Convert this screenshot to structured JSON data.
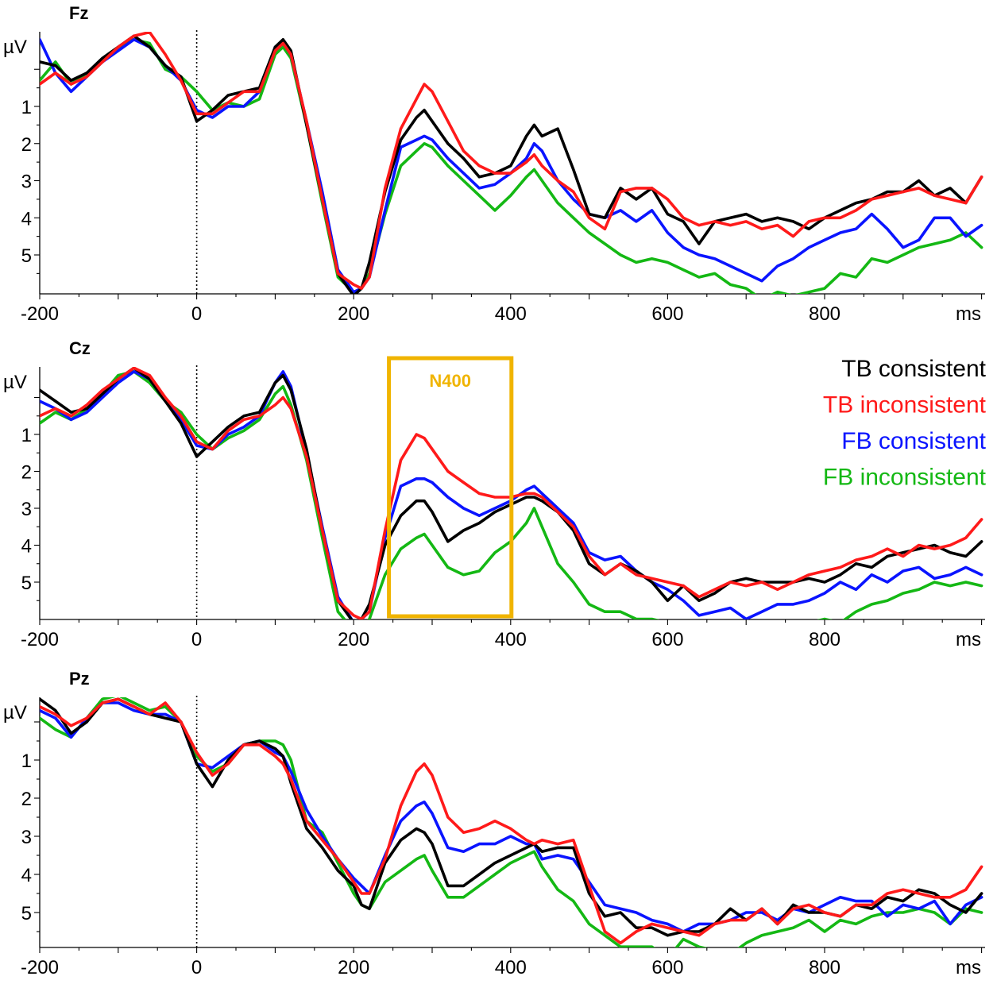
{
  "colors": {
    "tb_consistent": "#000000",
    "tb_inconsistent": "#ff1a1a",
    "fb_consistent": "#0a14ff",
    "fb_inconsistent": "#14b814",
    "n400_box": "#f0b400",
    "axis": "#000000"
  },
  "chart_data": [
    {
      "type": "line",
      "title": "Fz",
      "ylabel": "µV",
      "xunit": "ms",
      "y_inverted": true,
      "xlim": [
        -200,
        1000
      ],
      "ylim": [
        -0.9,
        6.0
      ],
      "x_ticks": [
        "-200",
        "0",
        "200",
        "400",
        "600",
        "800"
      ],
      "y_ticks": [
        "1",
        "2",
        "3",
        "4",
        "5"
      ],
      "onset_marker_ms": 0,
      "grid": false,
      "x": [
        -200,
        -180,
        -160,
        -140,
        -120,
        -100,
        -80,
        -60,
        -40,
        -20,
        0,
        20,
        40,
        60,
        80,
        100,
        110,
        120,
        140,
        160,
        180,
        200,
        210,
        220,
        240,
        260,
        280,
        290,
        300,
        320,
        340,
        360,
        380,
        400,
        420,
        430,
        440,
        460,
        480,
        500,
        520,
        540,
        560,
        580,
        600,
        620,
        640,
        660,
        680,
        700,
        720,
        740,
        760,
        780,
        800,
        820,
        840,
        860,
        880,
        900,
        920,
        940,
        960,
        980,
        1000
      ],
      "series": [
        {
          "name": "TB consistent",
          "values": [
            -0.2,
            -0.1,
            0.3,
            0.1,
            -0.3,
            -0.6,
            -0.9,
            -0.6,
            -0.1,
            0.2,
            1.4,
            1.1,
            0.7,
            0.6,
            0.5,
            -0.6,
            -0.8,
            -0.5,
            1.5,
            3.5,
            5.5,
            6.1,
            5.9,
            5.2,
            3.3,
            1.9,
            1.3,
            1.1,
            1.4,
            2.0,
            2.4,
            2.9,
            2.8,
            2.6,
            1.8,
            1.5,
            1.8,
            1.6,
            2.7,
            3.9,
            4.0,
            3.2,
            3.5,
            3.2,
            3.9,
            4.1,
            4.7,
            4.1,
            4.0,
            3.9,
            4.1,
            4.0,
            4.1,
            4.3,
            4.0,
            3.8,
            3.6,
            3.5,
            3.3,
            3.3,
            3.0,
            3.4,
            3.2,
            3.6,
            2.9
          ]
        },
        {
          "name": "TB inconsistent",
          "values": [
            0.4,
            0.1,
            0.4,
            0.2,
            -0.2,
            -0.6,
            -0.9,
            -1.0,
            -0.4,
            0.3,
            1.2,
            1.2,
            0.9,
            0.6,
            0.6,
            -0.5,
            -0.7,
            -0.4,
            1.4,
            3.5,
            5.5,
            5.8,
            5.9,
            5.6,
            3.2,
            1.6,
            0.8,
            0.4,
            0.6,
            1.4,
            2.2,
            2.6,
            2.8,
            2.8,
            2.5,
            2.3,
            2.6,
            3.0,
            3.3,
            4.0,
            4.3,
            3.3,
            3.2,
            3.2,
            3.5,
            4.0,
            4.2,
            4.1,
            4.2,
            4.1,
            4.3,
            4.2,
            4.5,
            4.1,
            4.0,
            4.0,
            3.8,
            3.5,
            3.4,
            3.3,
            3.2,
            3.4,
            3.5,
            3.6,
            2.9
          ]
        },
        {
          "name": "FB consistent",
          "values": [
            -0.8,
            0.1,
            0.6,
            0.2,
            -0.2,
            -0.5,
            -0.8,
            -0.6,
            -0.1,
            0.3,
            1.1,
            1.3,
            1.0,
            1.0,
            0.6,
            -0.6,
            -0.7,
            -0.4,
            1.4,
            3.3,
            5.4,
            6.0,
            5.9,
            5.6,
            3.8,
            2.1,
            1.9,
            1.8,
            1.9,
            2.4,
            2.8,
            3.2,
            3.1,
            2.8,
            2.4,
            2.0,
            2.2,
            3.0,
            3.5,
            3.9,
            4.0,
            3.8,
            4.1,
            3.8,
            4.4,
            4.8,
            5.0,
            5.1,
            5.3,
            5.5,
            5.7,
            5.3,
            5.1,
            4.8,
            4.6,
            4.4,
            4.3,
            3.9,
            4.3,
            4.8,
            4.6,
            4.0,
            4.0,
            4.5,
            4.2
          ]
        },
        {
          "name": "FB inconsistent",
          "values": [
            0.3,
            -0.2,
            0.4,
            0.1,
            -0.2,
            -0.6,
            -0.8,
            -0.7,
            0.0,
            0.2,
            0.6,
            1.1,
            0.9,
            1.0,
            0.8,
            -0.4,
            -0.6,
            -0.3,
            1.5,
            3.6,
            5.6,
            6.0,
            5.9,
            5.5,
            3.9,
            2.6,
            2.2,
            2.0,
            2.1,
            2.6,
            3.0,
            3.4,
            3.8,
            3.4,
            2.9,
            2.7,
            3.0,
            3.6,
            4.0,
            4.4,
            4.7,
            5.0,
            5.2,
            5.1,
            5.2,
            5.4,
            5.6,
            5.5,
            5.8,
            5.9,
            6.2,
            6.0,
            6.1,
            6.0,
            5.9,
            5.5,
            5.6,
            5.1,
            5.2,
            5.0,
            4.8,
            4.7,
            4.6,
            4.4,
            4.8
          ]
        }
      ]
    },
    {
      "type": "line",
      "title": "Cz",
      "ylabel": "µV",
      "xunit": "ms",
      "y_inverted": true,
      "xlim": [
        -200,
        1000
      ],
      "ylim": [
        -0.9,
        6.0
      ],
      "x_ticks": [
        "-200",
        "0",
        "200",
        "400",
        "600",
        "800"
      ],
      "y_ticks": [
        "1",
        "2",
        "3",
        "4",
        "5"
      ],
      "onset_marker_ms": 0,
      "grid": false,
      "legend": "top-right",
      "annotation": {
        "label": "N400",
        "x_range": [
          250,
          400
        ]
      },
      "x": [
        -200,
        -180,
        -160,
        -140,
        -120,
        -100,
        -80,
        -60,
        -40,
        -20,
        0,
        20,
        40,
        60,
        80,
        100,
        110,
        120,
        140,
        160,
        180,
        200,
        210,
        220,
        240,
        260,
        280,
        290,
        300,
        320,
        340,
        360,
        380,
        400,
        420,
        430,
        440,
        460,
        480,
        500,
        520,
        540,
        560,
        580,
        600,
        620,
        640,
        660,
        680,
        700,
        720,
        740,
        760,
        780,
        800,
        820,
        840,
        860,
        880,
        900,
        920,
        940,
        960,
        980,
        1000
      ],
      "series": [
        {
          "name": "TB consistent",
          "values": [
            -0.2,
            0.1,
            0.4,
            0.3,
            -0.1,
            -0.5,
            -0.8,
            -0.5,
            0.1,
            0.7,
            1.6,
            1.2,
            0.8,
            0.5,
            0.4,
            -0.4,
            -0.6,
            -0.2,
            1.4,
            3.6,
            5.5,
            6.1,
            6.0,
            5.6,
            4.0,
            3.2,
            2.8,
            2.8,
            3.1,
            3.9,
            3.6,
            3.4,
            3.1,
            2.9,
            2.7,
            2.7,
            2.8,
            3.1,
            3.6,
            4.5,
            4.8,
            4.5,
            4.7,
            5.0,
            5.5,
            5.1,
            5.5,
            5.3,
            5.0,
            4.9,
            5.0,
            5.0,
            5.0,
            4.9,
            5.0,
            4.8,
            4.5,
            4.6,
            4.3,
            4.2,
            4.1,
            4.0,
            4.2,
            4.3,
            3.9
          ]
        },
        {
          "name": "TB inconsistent",
          "values": [
            0.5,
            0.3,
            0.5,
            0.2,
            -0.2,
            -0.5,
            -0.8,
            -0.6,
            0.0,
            0.5,
            1.2,
            1.4,
            0.9,
            0.6,
            0.5,
            0.2,
            0.0,
            0.3,
            1.6,
            3.6,
            5.5,
            5.9,
            6.0,
            5.8,
            3.6,
            1.7,
            1.0,
            1.1,
            1.4,
            2.0,
            2.3,
            2.6,
            2.7,
            2.7,
            2.6,
            2.6,
            2.7,
            3.1,
            3.5,
            4.3,
            4.8,
            4.5,
            4.8,
            4.9,
            5.0,
            5.1,
            5.4,
            5.2,
            5.0,
            5.1,
            5.0,
            5.2,
            5.0,
            4.8,
            4.7,
            4.6,
            4.4,
            4.3,
            4.1,
            4.3,
            4.0,
            4.1,
            4.0,
            3.8,
            3.3
          ]
        },
        {
          "name": "FB consistent",
          "values": [
            0.1,
            0.3,
            0.6,
            0.4,
            0.0,
            -0.4,
            -0.7,
            -0.5,
            0.1,
            0.6,
            1.3,
            1.4,
            1.0,
            0.8,
            0.5,
            -0.4,
            -0.7,
            -0.3,
            1.5,
            3.5,
            5.4,
            6.1,
            6.0,
            5.8,
            3.8,
            2.4,
            2.2,
            2.2,
            2.3,
            2.7,
            3.0,
            3.2,
            3.0,
            2.8,
            2.5,
            2.4,
            2.6,
            3.0,
            3.4,
            4.2,
            4.4,
            4.3,
            4.7,
            5.0,
            5.2,
            5.5,
            5.9,
            5.8,
            5.7,
            6.0,
            5.8,
            5.6,
            5.6,
            5.5,
            5.3,
            5.0,
            5.2,
            4.8,
            5.0,
            4.7,
            4.6,
            4.9,
            4.8,
            4.6,
            4.8
          ]
        },
        {
          "name": "FB inconsistent",
          "values": [
            0.7,
            0.4,
            0.6,
            0.3,
            -0.1,
            -0.6,
            -0.7,
            -0.4,
            0.1,
            0.4,
            1.0,
            1.4,
            1.1,
            0.9,
            0.6,
            -0.1,
            -0.3,
            0.2,
            1.7,
            3.8,
            5.8,
            6.3,
            6.2,
            6.0,
            4.8,
            4.1,
            3.8,
            3.7,
            4.0,
            4.6,
            4.8,
            4.7,
            4.2,
            3.9,
            3.4,
            3.0,
            3.5,
            4.5,
            5.0,
            5.6,
            5.8,
            5.8,
            6.0,
            6.0,
            6.1,
            6.2,
            6.3,
            6.4,
            6.5,
            6.6,
            6.4,
            6.3,
            6.1,
            6.1,
            6.0,
            6.1,
            5.8,
            5.6,
            5.5,
            5.3,
            5.2,
            5.0,
            5.1,
            5.0,
            5.1
          ]
        }
      ]
    },
    {
      "type": "line",
      "title": "Pz",
      "ylabel": "µV",
      "xunit": "ms",
      "y_inverted": true,
      "xlim": [
        -200,
        1000
      ],
      "ylim": [
        -0.9,
        6.0
      ],
      "x_ticks": [
        "-200",
        "0",
        "200",
        "400",
        "600",
        "800"
      ],
      "y_ticks": [
        "1",
        "2",
        "3",
        "4",
        "5"
      ],
      "onset_marker_ms": 0,
      "grid": false,
      "x": [
        -200,
        -180,
        -160,
        -140,
        -120,
        -100,
        -80,
        -60,
        -40,
        -20,
        0,
        20,
        40,
        60,
        80,
        100,
        110,
        120,
        140,
        160,
        180,
        200,
        210,
        220,
        240,
        260,
        280,
        290,
        300,
        320,
        340,
        360,
        380,
        400,
        420,
        430,
        440,
        460,
        480,
        500,
        520,
        540,
        560,
        580,
        600,
        620,
        640,
        660,
        680,
        700,
        720,
        740,
        760,
        780,
        800,
        820,
        840,
        860,
        880,
        900,
        920,
        940,
        960,
        980,
        1000
      ],
      "series": [
        {
          "name": "TB consistent",
          "values": [
            -0.6,
            -0.3,
            0.3,
            0.0,
            -0.5,
            -0.6,
            -0.4,
            -0.2,
            -0.1,
            0.0,
            1.1,
            1.7,
            1.0,
            0.6,
            0.5,
            0.7,
            0.9,
            1.6,
            2.8,
            3.3,
            3.9,
            4.3,
            4.8,
            4.9,
            3.7,
            3.1,
            2.8,
            2.9,
            3.2,
            4.3,
            4.3,
            4.0,
            3.7,
            3.5,
            3.3,
            3.2,
            3.4,
            3.3,
            3.3,
            4.5,
            5.1,
            5.0,
            5.4,
            5.4,
            5.6,
            5.5,
            5.5,
            5.3,
            4.9,
            5.2,
            4.9,
            5.3,
            4.8,
            5.0,
            5.0,
            5.1,
            4.8,
            4.9,
            4.6,
            4.7,
            4.4,
            4.5,
            4.8,
            5.0,
            4.5
          ]
        },
        {
          "name": "TB inconsistent",
          "values": [
            -0.4,
            -0.2,
            0.1,
            -0.1,
            -0.5,
            -0.6,
            -0.4,
            -0.2,
            -0.5,
            0.0,
            0.8,
            1.4,
            1.1,
            0.6,
            0.6,
            0.9,
            1.1,
            1.5,
            2.6,
            3.1,
            3.6,
            4.2,
            4.5,
            4.5,
            3.6,
            2.2,
            1.3,
            1.1,
            1.4,
            2.5,
            2.9,
            2.8,
            2.6,
            2.8,
            3.1,
            3.2,
            3.1,
            3.2,
            3.1,
            4.3,
            5.5,
            5.8,
            5.5,
            5.3,
            5.4,
            5.5,
            5.6,
            5.3,
            5.2,
            5.2,
            4.9,
            5.3,
            4.9,
            4.8,
            5.0,
            5.1,
            4.8,
            4.8,
            4.5,
            4.4,
            4.5,
            4.6,
            4.6,
            4.4,
            3.8
          ]
        },
        {
          "name": "FB consistent",
          "values": [
            -0.3,
            -0.1,
            0.4,
            -0.1,
            -0.5,
            -0.5,
            -0.3,
            -0.2,
            -0.2,
            0.0,
            1.1,
            1.2,
            0.9,
            0.6,
            0.5,
            0.8,
            0.9,
            1.3,
            2.3,
            3.0,
            3.6,
            4.1,
            4.3,
            4.5,
            3.5,
            2.6,
            2.2,
            2.1,
            2.4,
            3.3,
            3.4,
            3.2,
            3.2,
            3.0,
            3.2,
            3.2,
            3.6,
            3.5,
            3.6,
            4.2,
            4.8,
            4.9,
            5.0,
            5.2,
            5.3,
            5.5,
            5.3,
            5.3,
            5.2,
            5.0,
            5.0,
            5.2,
            4.9,
            5.0,
            4.8,
            4.6,
            4.7,
            4.7,
            5.1,
            4.8,
            4.9,
            4.7,
            5.3,
            4.8,
            4.6
          ]
        },
        {
          "name": "FB inconsistent",
          "values": [
            -0.1,
            0.2,
            0.4,
            -0.1,
            -0.6,
            -0.7,
            -0.5,
            -0.3,
            -0.4,
            0.0,
            0.9,
            1.3,
            1.1,
            0.6,
            0.5,
            0.5,
            0.6,
            1.0,
            2.6,
            2.9,
            3.7,
            4.5,
            4.8,
            4.9,
            4.2,
            3.9,
            3.6,
            3.5,
            3.9,
            4.6,
            4.6,
            4.3,
            4.0,
            3.7,
            3.5,
            3.4,
            3.8,
            4.4,
            4.7,
            5.3,
            5.6,
            5.9,
            5.9,
            5.9,
            6.2,
            5.7,
            5.9,
            6.0,
            6.1,
            5.8,
            5.6,
            5.5,
            5.4,
            5.2,
            5.5,
            5.2,
            5.3,
            5.1,
            5.0,
            5.0,
            4.9,
            5.0,
            5.3,
            4.9,
            5.0
          ]
        }
      ]
    }
  ]
}
